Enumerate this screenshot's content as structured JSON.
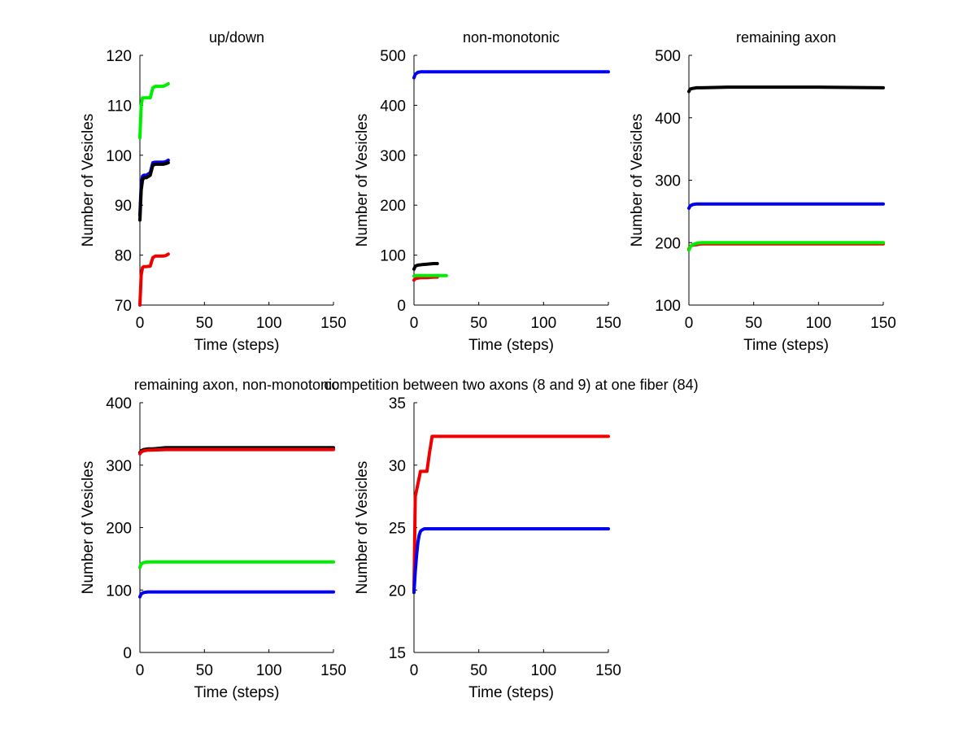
{
  "chart_data": [
    {
      "type": "line",
      "title": "up/down",
      "xlabel": "Time (steps)",
      "ylabel": "Number of Vesicles",
      "xlim": [
        0,
        150
      ],
      "ylim": [
        70,
        120
      ],
      "xticks": [
        0,
        50,
        100,
        150
      ],
      "yticks": [
        70,
        80,
        90,
        100,
        110,
        120
      ],
      "grid": false,
      "series": [
        {
          "name": "green",
          "color": "#00ee00",
          "x": [
            0,
            1,
            2,
            3,
            5,
            8,
            10,
            12,
            15,
            18,
            20,
            22
          ],
          "y": [
            103.5,
            110,
            111.5,
            111.5,
            111.5,
            111.5,
            113.5,
            113.8,
            113.8,
            113.8,
            114,
            114.3
          ]
        },
        {
          "name": "blue",
          "color": "#0000ee",
          "x": [
            0,
            1,
            2,
            3,
            5,
            8,
            10,
            12,
            15,
            18,
            20,
            22
          ],
          "y": [
            88,
            94,
            95.8,
            96,
            96,
            96.5,
            98.5,
            98.6,
            98.6,
            98.6,
            98.7,
            99
          ]
        },
        {
          "name": "black",
          "color": "#000000",
          "x": [
            0,
            1,
            2,
            3,
            5,
            8,
            10,
            12,
            15,
            18,
            20,
            22
          ],
          "y": [
            87,
            93,
            95,
            95.5,
            95.5,
            96,
            98,
            98.2,
            98.2,
            98.2,
            98.3,
            98.5
          ]
        },
        {
          "name": "red",
          "color": "#ee0000",
          "x": [
            0,
            1,
            2,
            3,
            5,
            8,
            10,
            12,
            15,
            18,
            20,
            22
          ],
          "y": [
            70,
            76,
            77.5,
            77.7,
            77.7,
            77.8,
            79.5,
            79.8,
            79.8,
            79.8,
            79.9,
            80.2
          ]
        }
      ]
    },
    {
      "type": "line",
      "title": "non-monotonic",
      "xlabel": "Time (steps)",
      "ylabel": "Number of Vesicles",
      "xlim": [
        0,
        150
      ],
      "ylim": [
        0,
        500
      ],
      "xticks": [
        0,
        50,
        100,
        150
      ],
      "yticks": [
        0,
        100,
        200,
        300,
        400,
        500
      ],
      "grid": false,
      "series": [
        {
          "name": "blue",
          "color": "#0000ee",
          "x": [
            0,
            1,
            3,
            5,
            10,
            30,
            60,
            100,
            150
          ],
          "y": [
            455,
            462,
            466,
            467,
            467,
            467,
            467,
            467,
            467
          ]
        },
        {
          "name": "black",
          "color": "#000000",
          "x": [
            0,
            1,
            3,
            6,
            10,
            15,
            18
          ],
          "y": [
            72,
            78,
            80,
            81,
            82,
            83,
            83
          ]
        },
        {
          "name": "red",
          "color": "#ee0000",
          "x": [
            0,
            1,
            3,
            6,
            10,
            15,
            18
          ],
          "y": [
            50,
            53,
            54,
            55,
            55,
            56,
            56
          ]
        },
        {
          "name": "green",
          "color": "#00ee00",
          "x": [
            0,
            1,
            3,
            6,
            10,
            15,
            20,
            25
          ],
          "y": [
            58,
            59,
            59,
            59,
            59,
            59,
            59,
            59
          ]
        }
      ]
    },
    {
      "type": "line",
      "title": "remaining axon",
      "xlabel": "Time (steps)",
      "ylabel": "Number of Vesicles",
      "xlim": [
        0,
        150
      ],
      "ylim": [
        100,
        500
      ],
      "xticks": [
        0,
        50,
        100,
        150
      ],
      "yticks": [
        100,
        200,
        300,
        400,
        500
      ],
      "grid": false,
      "series": [
        {
          "name": "black",
          "color": "#000000",
          "x": [
            0,
            1,
            3,
            6,
            10,
            30,
            60,
            100,
            150
          ],
          "y": [
            442,
            446,
            447,
            448,
            448,
            449,
            449,
            449,
            448
          ]
        },
        {
          "name": "blue",
          "color": "#0000ee",
          "x": [
            0,
            1,
            3,
            6,
            10,
            30,
            60,
            100,
            150
          ],
          "y": [
            255,
            259,
            261,
            262,
            262,
            262,
            262,
            262,
            262
          ]
        },
        {
          "name": "red",
          "color": "#ee0000",
          "x": [
            0,
            1,
            3,
            6,
            10,
            30,
            60,
            100,
            150
          ],
          "y": [
            190,
            194,
            196,
            197,
            198,
            198,
            198,
            198,
            198
          ]
        },
        {
          "name": "green",
          "color": "#00ee00",
          "x": [
            0,
            1,
            3,
            6,
            10,
            30,
            60,
            100,
            150
          ],
          "y": [
            188,
            193,
            197,
            199,
            200,
            200,
            200,
            200,
            200
          ]
        }
      ]
    },
    {
      "type": "line",
      "title": "remaining axon, non-monotonic",
      "xlabel": "Time (steps)",
      "ylabel": "Number of Vesicles",
      "xlim": [
        0,
        150
      ],
      "ylim": [
        0,
        400
      ],
      "xticks": [
        0,
        50,
        100,
        150
      ],
      "yticks": [
        0,
        100,
        200,
        300,
        400
      ],
      "grid": false,
      "series": [
        {
          "name": "black",
          "color": "#000000",
          "x": [
            0,
            1,
            3,
            6,
            10,
            20,
            50,
            100,
            150
          ],
          "y": [
            320,
            323,
            325,
            326,
            326,
            328,
            328,
            328,
            328
          ]
        },
        {
          "name": "red",
          "color": "#ee0000",
          "x": [
            0,
            1,
            3,
            6,
            10,
            20,
            50,
            100,
            150
          ],
          "y": [
            318,
            321,
            323,
            324,
            324,
            325,
            325,
            325,
            325
          ]
        },
        {
          "name": "green",
          "color": "#00ee00",
          "x": [
            0,
            1,
            3,
            6,
            10,
            30,
            60,
            100,
            150
          ],
          "y": [
            136,
            142,
            144,
            145,
            145,
            145,
            145,
            145,
            145
          ]
        },
        {
          "name": "blue",
          "color": "#0000ee",
          "x": [
            0,
            1,
            3,
            6,
            10,
            30,
            60,
            100,
            150
          ],
          "y": [
            89,
            94,
            96,
            97,
            97,
            97,
            97,
            97,
            97
          ]
        }
      ]
    },
    {
      "type": "line",
      "title": "competition between two axons (8 and 9) at one fiber (84)",
      "xlabel": "Time (steps)",
      "ylabel": "Number of Vesicles",
      "xlim": [
        0,
        150
      ],
      "ylim": [
        15,
        35
      ],
      "xticks": [
        0,
        50,
        100,
        150
      ],
      "yticks": [
        15,
        20,
        25,
        30,
        35
      ],
      "grid": false,
      "series": [
        {
          "name": "red",
          "color": "#ee0000",
          "x": [
            0,
            1,
            2,
            3,
            5,
            7,
            10,
            12,
            14,
            20,
            50,
            100,
            150
          ],
          "y": [
            20,
            27.5,
            28,
            28.5,
            29.5,
            29.5,
            29.5,
            31,
            32.3,
            32.3,
            32.3,
            32.3,
            32.3
          ]
        },
        {
          "name": "blue",
          "color": "#0000ee",
          "x": [
            0,
            1,
            2,
            3,
            4,
            5,
            6,
            8,
            10,
            20,
            50,
            100,
            150
          ],
          "y": [
            19.8,
            21.5,
            22.8,
            23.8,
            24.4,
            24.7,
            24.8,
            24.9,
            24.9,
            24.9,
            24.9,
            24.9,
            24.9
          ]
        }
      ]
    }
  ]
}
